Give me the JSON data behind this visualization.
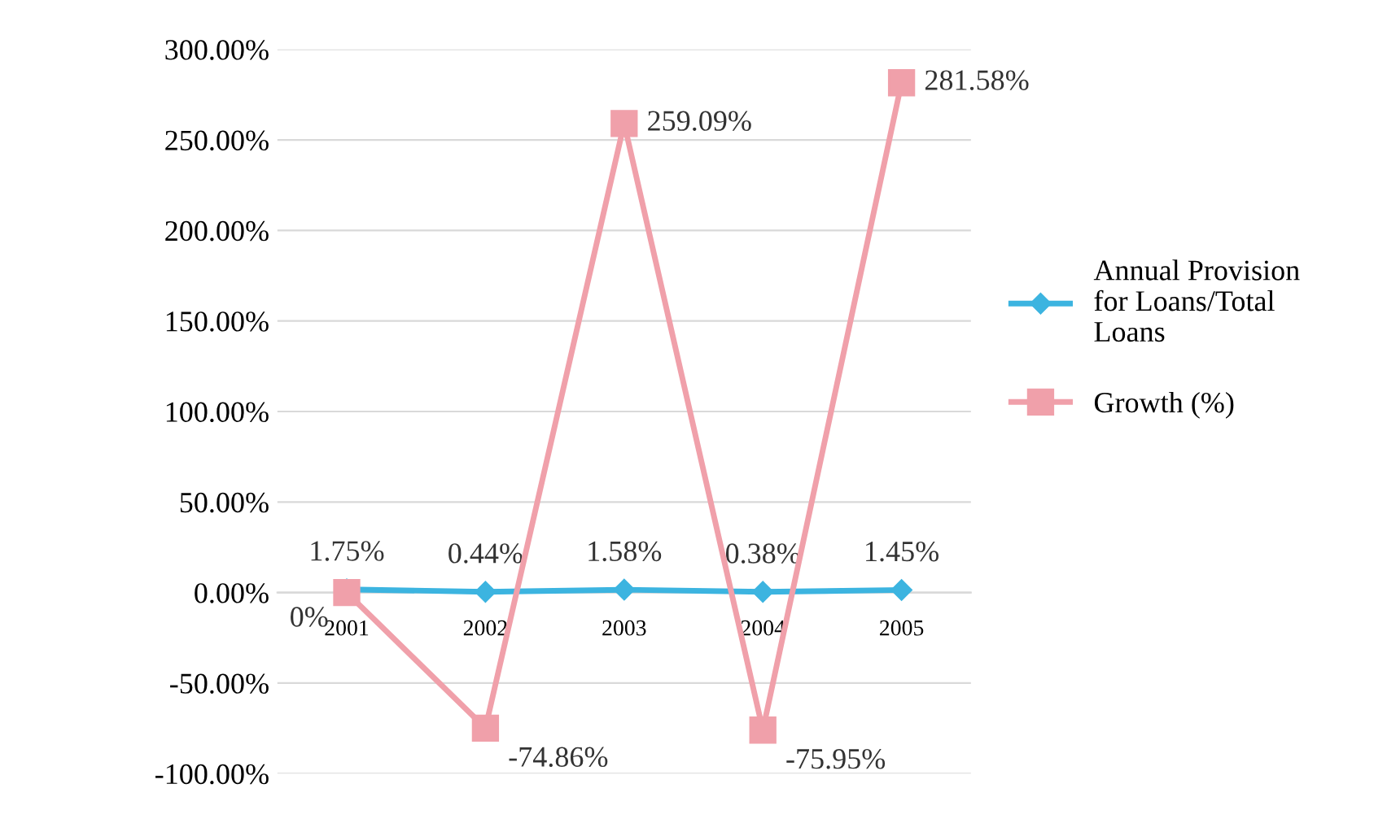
{
  "chart_data": {
    "type": "line",
    "categories": [
      "2001",
      "2002",
      "2003",
      "2004",
      "2005"
    ],
    "series": [
      {
        "name": "Annual Provision for Loans/Total Loans",
        "color": "#3cb4e0",
        "marker": "diamond",
        "values": [
          1.75,
          0.44,
          1.58,
          0.38,
          1.45
        ],
        "value_labels": [
          "1.75%",
          "0.44%",
          "1.58%",
          "0.38%",
          "1.45%"
        ]
      },
      {
        "name": "Growth (%)",
        "color": "#f0a0aa",
        "marker": "square",
        "values": [
          0,
          -74.86,
          259.09,
          -75.95,
          281.58
        ],
        "value_labels": [
          "0%",
          "-74.86%",
          "259.09%",
          "-75.95%",
          "281.58%"
        ]
      }
    ],
    "ylim": [
      -100,
      300
    ],
    "yticks": [
      {
        "value": -100,
        "label": "-100.00%"
      },
      {
        "value": -50,
        "label": "-50.00%"
      },
      {
        "value": 0,
        "label": "0.00%"
      },
      {
        "value": 50,
        "label": "50.00%"
      },
      {
        "value": 100,
        "label": "100.00%"
      },
      {
        "value": 150,
        "label": "150.00%"
      },
      {
        "value": 200,
        "label": "200.00%"
      },
      {
        "value": 250,
        "label": "250.00%"
      },
      {
        "value": 300,
        "label": "300.00%"
      }
    ],
    "grid": "y",
    "legend": "right"
  }
}
